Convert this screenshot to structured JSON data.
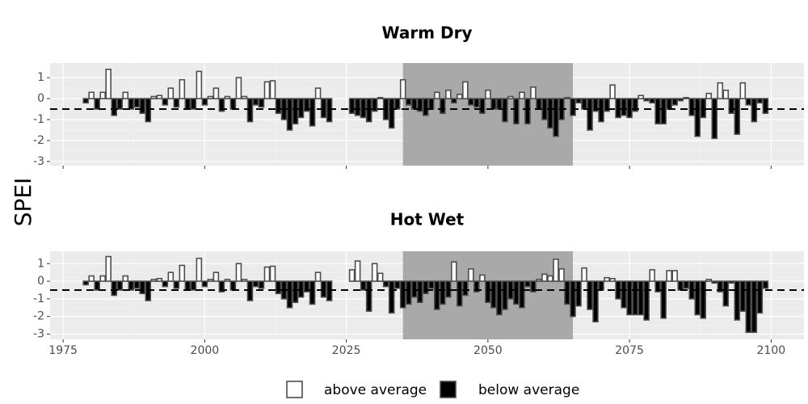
{
  "y_label": "SPEI",
  "legend": [
    {
      "label": "above average",
      "color": "#ffffff"
    },
    {
      "label": "below average",
      "color": "#000000"
    }
  ],
  "chart_data": [
    {
      "type": "bar",
      "title": "Warm Dry",
      "x": [
        1979,
        1980,
        1981,
        1982,
        1983,
        1984,
        1985,
        1986,
        1987,
        1988,
        1989,
        1990,
        1991,
        1992,
        1993,
        1994,
        1995,
        1996,
        1997,
        1998,
        1999,
        2000,
        2001,
        2002,
        2003,
        2004,
        2005,
        2006,
        2007,
        2008,
        2009,
        2010,
        2011,
        2012,
        2013,
        2014,
        2015,
        2016,
        2017,
        2018,
        2019,
        2020,
        2021,
        2022,
        2026,
        2027,
        2028,
        2029,
        2030,
        2031,
        2032,
        2033,
        2034,
        2035,
        2036,
        2037,
        2038,
        2039,
        2040,
        2041,
        2042,
        2043,
        2044,
        2045,
        2046,
        2047,
        2048,
        2049,
        2050,
        2051,
        2052,
        2053,
        2054,
        2055,
        2056,
        2057,
        2058,
        2059,
        2060,
        2061,
        2062,
        2063,
        2064,
        2065,
        2066,
        2067,
        2068,
        2069,
        2070,
        2071,
        2072,
        2073,
        2074,
        2075,
        2076,
        2077,
        2078,
        2079,
        2080,
        2081,
        2082,
        2083,
        2084,
        2085,
        2086,
        2087,
        2088,
        2089,
        2090,
        2091,
        2092,
        2093,
        2094,
        2095,
        2096,
        2097,
        2098,
        2099
      ],
      "values": [
        -0.2,
        0.3,
        -0.5,
        0.3,
        1.4,
        -0.8,
        -0.5,
        0.3,
        -0.5,
        -0.4,
        -0.7,
        -1.1,
        0.1,
        0.15,
        -0.3,
        0.5,
        -0.4,
        0.9,
        -0.5,
        -0.5,
        1.3,
        -0.3,
        0.1,
        0.5,
        -0.6,
        0.1,
        -0.5,
        1.0,
        0.1,
        -1.1,
        -0.3,
        -0.4,
        0.8,
        0.85,
        -0.7,
        -1.0,
        -1.5,
        -1.2,
        -0.9,
        -0.6,
        -1.3,
        0.5,
        -0.9,
        -1.1,
        -0.7,
        -0.8,
        -0.9,
        -1.1,
        -0.6,
        0.05,
        -1.0,
        -1.4,
        -0.5,
        0.9,
        -0.3,
        -0.5,
        -0.6,
        -0.8,
        -0.5,
        0.3,
        -0.7,
        0.4,
        -0.2,
        0.2,
        0.8,
        -0.3,
        -0.4,
        -0.7,
        0.4,
        -0.5,
        -0.5,
        -1.1,
        0.1,
        -1.2,
        0.3,
        -1.2,
        0.55,
        -0.5,
        -1.0,
        -1.4,
        -1.8,
        -1.0,
        0.05,
        -0.8,
        -0.2,
        -0.5,
        -1.5,
        -0.6,
        -1.1,
        -0.6,
        0.65,
        -0.9,
        -0.8,
        -0.9,
        -0.6,
        0.15,
        -0.1,
        -0.2,
        -1.2,
        -1.2,
        -0.5,
        -0.3,
        -0.1,
        0.05,
        -0.8,
        -1.8,
        -0.9,
        0.25,
        -1.9,
        0.75,
        0.4,
        -0.7,
        -1.7,
        0.75,
        -0.3,
        -1.1,
        -0.2,
        -0.7
      ],
      "xlim": [
        1972.7,
        2105.8
      ],
      "xticks": [
        1975,
        2000,
        2025,
        2050,
        2075,
        2100
      ],
      "show_xtick_labels": false,
      "ylim": [
        -3.2,
        1.7
      ],
      "yticks": [
        -3,
        -2,
        -1,
        0,
        1
      ],
      "shade": [
        2035,
        2065
      ],
      "reference_line": -0.5,
      "grid": true
    },
    {
      "type": "bar",
      "title": "Hot Wet",
      "x": [
        1979,
        1980,
        1981,
        1982,
        1983,
        1984,
        1985,
        1986,
        1987,
        1988,
        1989,
        1990,
        1991,
        1992,
        1993,
        1994,
        1995,
        1996,
        1997,
        1998,
        1999,
        2000,
        2001,
        2002,
        2003,
        2004,
        2005,
        2006,
        2007,
        2008,
        2009,
        2010,
        2011,
        2012,
        2013,
        2014,
        2015,
        2016,
        2017,
        2018,
        2019,
        2020,
        2021,
        2022,
        2026,
        2027,
        2028,
        2029,
        2030,
        2031,
        2032,
        2033,
        2034,
        2035,
        2036,
        2037,
        2038,
        2039,
        2040,
        2041,
        2042,
        2043,
        2044,
        2045,
        2046,
        2047,
        2048,
        2049,
        2050,
        2051,
        2052,
        2053,
        2054,
        2055,
        2056,
        2057,
        2058,
        2059,
        2060,
        2061,
        2062,
        2063,
        2064,
        2065,
        2066,
        2067,
        2068,
        2069,
        2070,
        2071,
        2072,
        2073,
        2074,
        2075,
        2076,
        2077,
        2078,
        2079,
        2080,
        2081,
        2082,
        2083,
        2084,
        2085,
        2086,
        2087,
        2088,
        2089,
        2090,
        2091,
        2092,
        2093,
        2094,
        2095,
        2096,
        2097,
        2098,
        2099
      ],
      "values": [
        -0.2,
        0.3,
        -0.5,
        0.3,
        1.4,
        -0.8,
        -0.5,
        0.3,
        -0.5,
        -0.4,
        -0.7,
        -1.1,
        0.1,
        0.15,
        -0.3,
        0.5,
        -0.4,
        0.9,
        -0.5,
        -0.5,
        1.3,
        -0.3,
        0.1,
        0.5,
        -0.6,
        0.1,
        -0.5,
        1.0,
        0.1,
        -1.1,
        -0.3,
        -0.4,
        0.8,
        0.85,
        -0.7,
        -1.0,
        -1.5,
        -1.2,
        -0.9,
        -0.6,
        -1.3,
        0.5,
        -0.9,
        -1.1,
        0.65,
        1.15,
        -0.5,
        -1.7,
        1.0,
        0.45,
        -0.3,
        -1.8,
        -0.4,
        -1.5,
        -1.3,
        -0.9,
        -1.2,
        -0.7,
        -0.4,
        -1.6,
        -1.3,
        -0.9,
        1.1,
        -1.4,
        -0.8,
        0.7,
        -0.6,
        0.35,
        -1.2,
        -1.5,
        -1.9,
        -1.6,
        -1.0,
        -1.3,
        -1.5,
        -0.3,
        -0.6,
        0.1,
        0.4,
        0.3,
        1.25,
        0.7,
        -1.3,
        -2.0,
        -1.4,
        0.75,
        -1.6,
        -2.3,
        -0.5,
        0.2,
        0.15,
        -1.0,
        -1.5,
        -1.9,
        -1.9,
        -1.9,
        -2.2,
        0.65,
        -0.6,
        -2.1,
        0.6,
        0.6,
        -0.5,
        -0.4,
        -1.0,
        -1.9,
        -2.1,
        0.1,
        -0.1,
        -0.6,
        -1.4,
        -0.1,
        -2.2,
        -1.7,
        -2.9,
        -2.9,
        -1.8,
        -0.4
      ],
      "xlim": [
        1972.7,
        2105.8
      ],
      "xticks": [
        1975,
        2000,
        2025,
        2050,
        2075,
        2100
      ],
      "show_xtick_labels": true,
      "ylim": [
        -3.3,
        1.7
      ],
      "yticks": [
        -3,
        -2,
        -1,
        0,
        1
      ],
      "shade": [
        2035,
        2065
      ],
      "reference_line": -0.5,
      "grid": true
    }
  ]
}
